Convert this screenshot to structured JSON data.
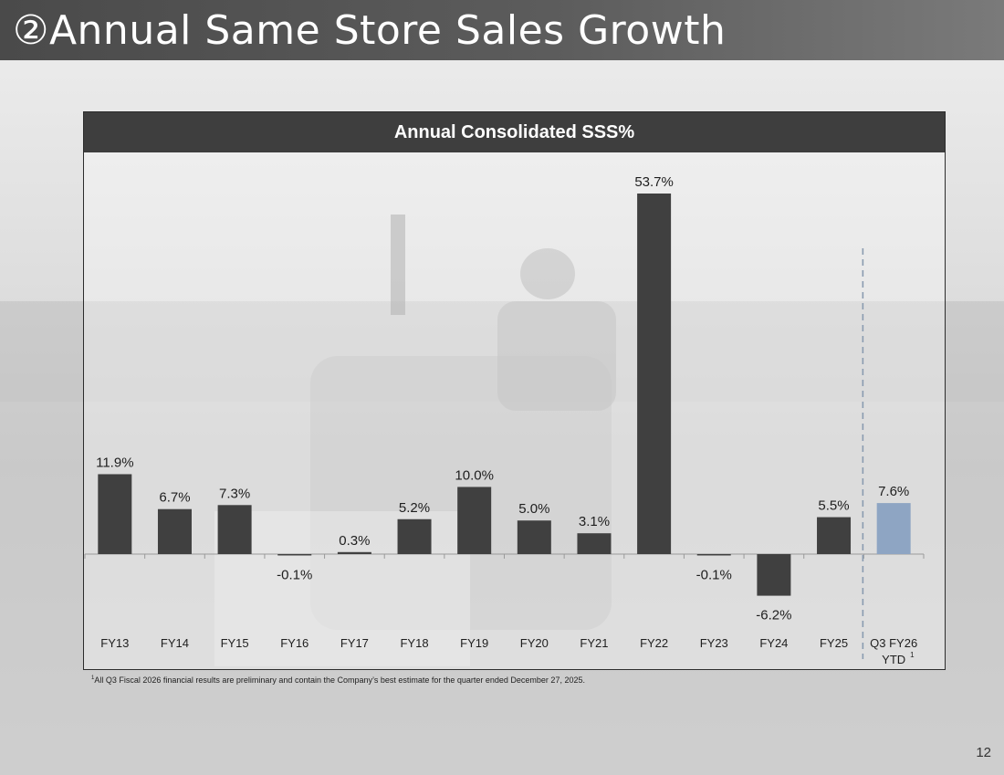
{
  "slide": {
    "title": "②Annual Same Store Sales Growth",
    "page_number": "12",
    "footnote_marker": "1",
    "footnote_text": "All Q3 Fiscal 2026 financial results are preliminary and contain the Company’s best estimate for the quarter ended December 27, 2025."
  },
  "colors": {
    "bar_default": "#404040",
    "bar_highlight": "#8ea5c3",
    "divider": "#8a9bb0"
  },
  "chart_data": {
    "type": "bar",
    "title": "Annual Consolidated SSS%",
    "categories": [
      "FY13",
      "FY14",
      "FY15",
      "FY16",
      "FY17",
      "FY18",
      "FY19",
      "FY20",
      "FY21",
      "FY22",
      "FY23",
      "FY24",
      "FY25",
      "Q3 FY26 YTD"
    ],
    "category_lines": [
      [
        "FY13"
      ],
      [
        "FY14"
      ],
      [
        "FY15"
      ],
      [
        "FY16"
      ],
      [
        "FY17"
      ],
      [
        "FY18"
      ],
      [
        "FY19"
      ],
      [
        "FY20"
      ],
      [
        "FY21"
      ],
      [
        "FY22"
      ],
      [
        "FY23"
      ],
      [
        "FY24"
      ],
      [
        "FY25"
      ],
      [
        "Q3 FY26",
        "YTD"
      ]
    ],
    "category_superscripts": [
      "",
      "",
      "",
      "",
      "",
      "",
      "",
      "",
      "",
      "",
      "",
      "",
      "",
      "1"
    ],
    "values": [
      11.9,
      6.7,
      7.3,
      -0.1,
      0.3,
      5.2,
      10.0,
      5.0,
      3.1,
      53.7,
      -0.1,
      -6.2,
      5.5,
      7.6
    ],
    "data_labels": [
      "11.9%",
      "6.7%",
      "7.3%",
      "-0.1%",
      "0.3%",
      "5.2%",
      "10.0%",
      "5.0%",
      "3.1%",
      "53.7%",
      "-0.1%",
      "-6.2%",
      "5.5%",
      "7.6%"
    ],
    "highlight_index": 13,
    "divider_before_index": 13,
    "ylim": [
      -10,
      56
    ],
    "grid": false,
    "xlabel": "",
    "ylabel": ""
  }
}
